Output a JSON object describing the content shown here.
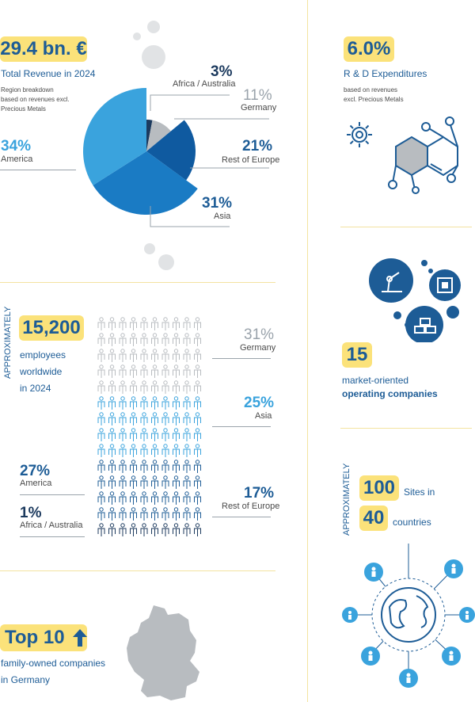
{
  "revenue": {
    "value": "29.4 bn. €",
    "caption": "Total Revenue in 2024",
    "note_lines": [
      "Region breakdown",
      "based on revenues excl.",
      "Precious Metals"
    ],
    "regions": [
      {
        "pct": "3%",
        "name": "Africa / Australia",
        "value": 3,
        "color": "#1c3a5e"
      },
      {
        "pct": "11%",
        "name": "Germany",
        "value": 11,
        "color": "#b8bcc0"
      },
      {
        "pct": "21%",
        "name": "Rest of Europe",
        "value": 21,
        "color": "#0f5aa0"
      },
      {
        "pct": "31%",
        "name": "Asia",
        "value": 31,
        "color": "#1a7bc4"
      },
      {
        "pct": "34%",
        "name": "America",
        "value": 34,
        "color": "#3aa3dd"
      }
    ]
  },
  "rnd": {
    "value": "6.0%",
    "caption": "R & D  Expenditures",
    "note_lines": [
      "based on revenues",
      "excl. Precious Metals"
    ]
  },
  "employees": {
    "approx_label": "APPROXIMATELY",
    "value": "15,200",
    "caption_lines": [
      "employees",
      "worldwide",
      "in 2024"
    ],
    "regions": [
      {
        "pct": "31%",
        "name": "Germany"
      },
      {
        "pct": "25%",
        "name": "Asia"
      },
      {
        "pct": "27%",
        "name": "America"
      },
      {
        "pct": "1%",
        "name": "Africa / Australia"
      },
      {
        "pct": "17%",
        "name": "Rest of Europe"
      }
    ]
  },
  "companies": {
    "value": "15",
    "caption_lines": [
      "market-oriented",
      "operating companies"
    ]
  },
  "sites": {
    "approx_label": "APPROXIMATELY",
    "sites_value": "100",
    "sites_label": "Sites in",
    "countries_value": "40",
    "countries_label": "countries"
  },
  "ranking": {
    "value": "Top 10",
    "caption_lines": [
      "family-owned companies",
      "in Germany"
    ]
  },
  "colors": {
    "accent_yellow": "#fbe27a",
    "brand_blue": "#1d5c96",
    "light_blue": "#3aa3dd",
    "grey": "#9aa3ab"
  }
}
